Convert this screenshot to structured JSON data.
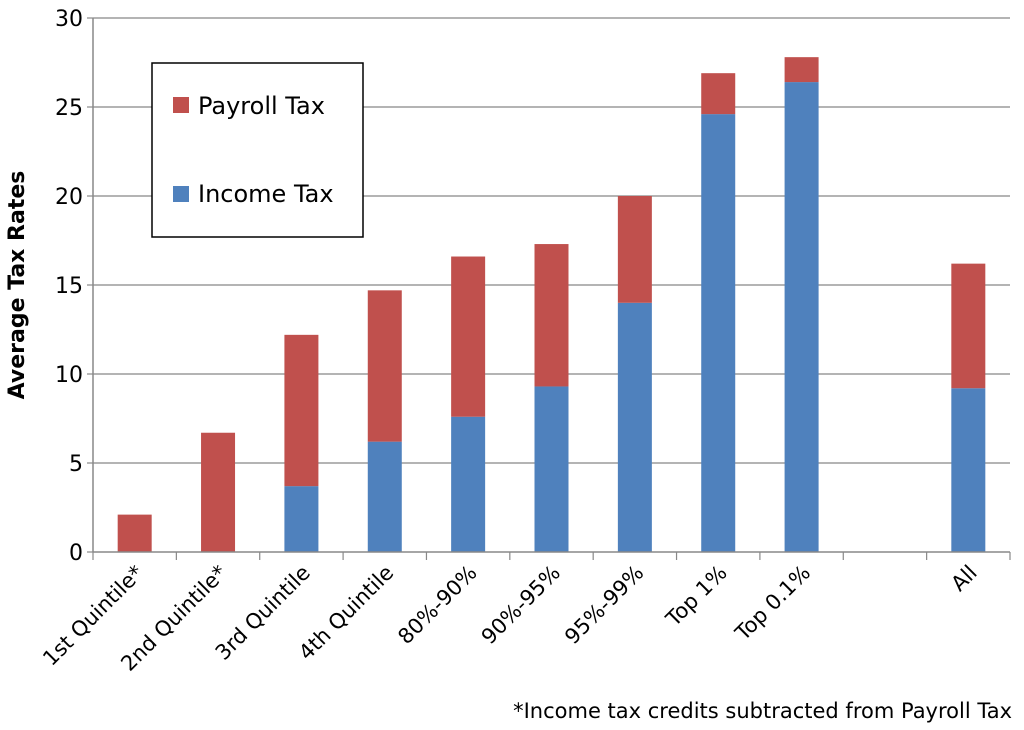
{
  "chart_data": {
    "type": "bar",
    "stacked": true,
    "categories": [
      "1st Quintile*",
      "2nd Quintile*",
      "3rd Quintile",
      "4th Quintile",
      "80%-90%",
      "90%-95%",
      "95%-99%",
      "Top 1%",
      "Top 0.1%",
      "",
      "All"
    ],
    "series": [
      {
        "name": "Income Tax",
        "color": "#4F81BD",
        "values": [
          0,
          0,
          3.7,
          6.2,
          7.6,
          9.3,
          14.0,
          24.6,
          26.4,
          0,
          9.2
        ]
      },
      {
        "name": "Payroll Tax",
        "color": "#C0504D",
        "values": [
          2.1,
          6.7,
          8.5,
          8.5,
          9.0,
          8.0,
          6.0,
          2.3,
          1.4,
          0,
          7.0
        ]
      }
    ],
    "ylabel": "Average Tax Rates",
    "ylim": [
      0,
      30
    ],
    "yticks": [
      0,
      5,
      10,
      15,
      20,
      25,
      30
    ],
    "grid": true,
    "legend_position": "top-left",
    "legend_order": [
      "Payroll Tax",
      "Income Tax"
    ],
    "footnote": "*Income tax credits subtracted from Payroll Tax"
  }
}
